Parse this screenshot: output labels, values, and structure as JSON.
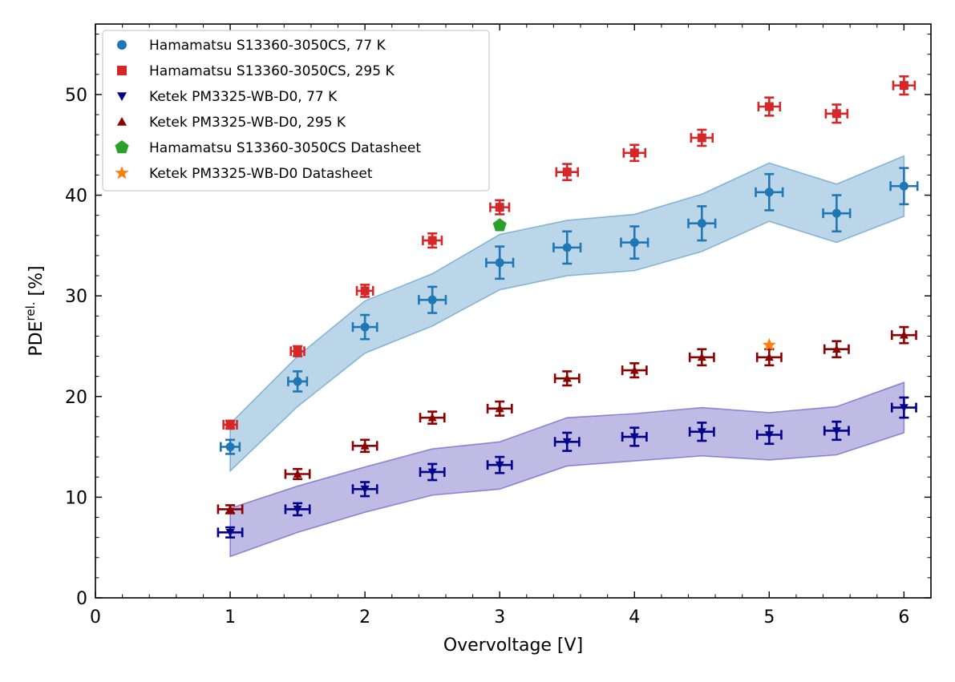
{
  "chart_data": {
    "type": "scatter",
    "xlabel": "Overvoltage [V]",
    "ylabel_main": "PDE",
    "ylabel_sup": "rel.",
    "ylabel_unit": " [%]",
    "xlim": [
      0,
      6.2
    ],
    "ylim": [
      0,
      57
    ],
    "x_ticks": [
      0,
      1,
      2,
      3,
      4,
      5,
      6
    ],
    "y_ticks": [
      0,
      10,
      20,
      30,
      40,
      50
    ],
    "x_minor_step": 0.2,
    "y_minor_step": 2,
    "legend_position": "upper-left",
    "bands": [
      {
        "color": "#1f77b4",
        "x": [
          1,
          1.5,
          2,
          2.5,
          3,
          3.5,
          4,
          4.5,
          5,
          5.5,
          6
        ],
        "lower": [
          12.6,
          19.0,
          24.3,
          27.0,
          30.6,
          32.0,
          32.5,
          34.4,
          37.4,
          35.3,
          37.9
        ],
        "upper": [
          17.3,
          24.0,
          29.5,
          32.2,
          36.1,
          37.5,
          38.1,
          40.1,
          43.2,
          41.1,
          43.9
        ]
      },
      {
        "color": "#2a1faa",
        "x": [
          1,
          1.5,
          2,
          2.5,
          3,
          3.5,
          4,
          4.5,
          5,
          5.5,
          6
        ],
        "lower": [
          4.1,
          6.5,
          8.5,
          10.2,
          10.8,
          13.1,
          13.6,
          14.1,
          13.7,
          14.2,
          16.4
        ],
        "upper": [
          8.9,
          11.1,
          13.0,
          14.8,
          15.5,
          17.9,
          18.3,
          18.9,
          18.4,
          19.0,
          21.4
        ]
      }
    ],
    "series": [
      {
        "name": "Hamamatsu S13360-3050CS, 77 K",
        "marker": "circle",
        "color": "#1f77b4",
        "x": [
          1,
          1.5,
          2,
          2.5,
          3,
          3.5,
          4,
          4.5,
          5,
          5.5,
          6
        ],
        "y": [
          15.0,
          21.5,
          26.9,
          29.6,
          33.3,
          34.8,
          35.3,
          37.2,
          40.3,
          38.2,
          40.9
        ],
        "yerr": [
          0.7,
          1.0,
          1.2,
          1.3,
          1.6,
          1.6,
          1.6,
          1.7,
          1.8,
          1.8,
          1.8
        ],
        "xerr": [
          0.07,
          0.07,
          0.09,
          0.1,
          0.1,
          0.1,
          0.1,
          0.1,
          0.1,
          0.1,
          0.1
        ]
      },
      {
        "name": "Hamamatsu S13360-3050CS, 295 K",
        "marker": "square",
        "color": "#d62728",
        "x": [
          1,
          1.5,
          2,
          2.5,
          3,
          3.5,
          4,
          4.5,
          5,
          5.5,
          6
        ],
        "y": [
          17.2,
          24.5,
          30.5,
          35.5,
          38.8,
          42.3,
          44.2,
          45.7,
          48.8,
          48.1,
          50.9
        ],
        "yerr": [
          0.4,
          0.5,
          0.6,
          0.7,
          0.7,
          0.8,
          0.8,
          0.8,
          0.9,
          0.9,
          0.9
        ],
        "xerr": [
          0.05,
          0.05,
          0.06,
          0.07,
          0.07,
          0.08,
          0.08,
          0.08,
          0.08,
          0.08,
          0.08
        ]
      },
      {
        "name": "Ketek PM3325-WB-D0, 77 K",
        "marker": "triangle-down",
        "color": "#00008b",
        "x": [
          1,
          1.5,
          2,
          2.5,
          3,
          3.5,
          4,
          4.5,
          5,
          5.5,
          6
        ],
        "y": [
          6.5,
          8.8,
          10.8,
          12.5,
          13.2,
          15.5,
          16.0,
          16.5,
          16.2,
          16.6,
          18.9
        ],
        "yerr": [
          0.5,
          0.6,
          0.7,
          0.8,
          0.8,
          0.9,
          0.9,
          0.9,
          0.9,
          0.9,
          1.0
        ],
        "xerr": [
          0.09,
          0.09,
          0.09,
          0.09,
          0.09,
          0.09,
          0.09,
          0.09,
          0.09,
          0.09,
          0.09
        ]
      },
      {
        "name": "Ketek PM3325-WB-D0, 295 K",
        "marker": "triangle-up",
        "color": "#8b0000",
        "x": [
          1,
          1.5,
          2,
          2.5,
          3,
          3.5,
          4,
          4.5,
          5,
          5.5,
          6
        ],
        "y": [
          8.8,
          12.3,
          15.1,
          17.9,
          18.8,
          21.8,
          22.6,
          23.9,
          23.9,
          24.7,
          26.1
        ],
        "yerr": [
          0.4,
          0.5,
          0.6,
          0.6,
          0.7,
          0.7,
          0.7,
          0.8,
          0.8,
          0.8,
          0.8
        ],
        "xerr": [
          0.09,
          0.09,
          0.09,
          0.09,
          0.09,
          0.09,
          0.09,
          0.09,
          0.09,
          0.09,
          0.09
        ]
      },
      {
        "name": "Hamamatsu S13360-3050CS Datasheet",
        "marker": "pentagon",
        "color": "#2ca02c",
        "x": [
          3
        ],
        "y": [
          37.0
        ]
      },
      {
        "name": "Ketek PM3325-WB-D0 Datasheet",
        "marker": "star",
        "color": "#ff7f0e",
        "x": [
          5
        ],
        "y": [
          25.1
        ]
      }
    ]
  }
}
